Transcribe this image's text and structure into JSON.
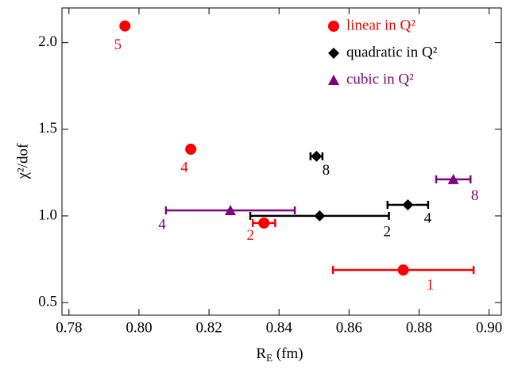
{
  "chart_data": {
    "type": "scatter",
    "x_label": [
      "R",
      "E",
      " (fm)"
    ],
    "y_label": "χ²/dof",
    "xlim": [
      0.778,
      0.9035
    ],
    "ylim": [
      0.427,
      2.2
    ],
    "xticks": [
      0.78,
      {
        "value": 0.8,
        "label": "0.80"
      },
      0.82,
      0.84,
      0.86,
      0.88,
      {
        "value": 0.9,
        "label": "0.90"
      }
    ],
    "yticks": [
      0.5,
      {
        "value": 1.0,
        "label": "1.0"
      },
      1.5,
      {
        "value": 2.0,
        "label": "2.0"
      }
    ],
    "legend": "upper right",
    "series": [
      {
        "name": "linear in Q²",
        "color": "#ff0000",
        "marker": "circle",
        "x": [
          0.796,
          0.8148,
          0.8357,
          0.8755
        ],
        "values": [
          2.096,
          1.385,
          0.959,
          0.688
        ],
        "xerr": [
          null,
          null,
          0.0032,
          0.0201
        ],
        "labels": [
          "5",
          "4",
          "2",
          "1"
        ]
      },
      {
        "name": "quadratic in Q²",
        "color": "#000000",
        "marker": "diamond",
        "x": [
          0.8507,
          0.8516,
          0.8768
        ],
        "values": [
          1.344,
          1.0,
          1.064
        ],
        "xerr": [
          0.0017,
          0.0198,
          0.0058
        ],
        "labels": [
          "8",
          "2",
          "4"
        ]
      },
      {
        "name": "cubic in Q²",
        "color": "#800080",
        "marker": "triangle",
        "x": [
          0.8261,
          0.8898
        ],
        "values": [
          1.032,
          1.211
        ],
        "xerr": [
          0.0184,
          0.0049
        ],
        "labels": [
          "4",
          "8"
        ]
      }
    ]
  }
}
